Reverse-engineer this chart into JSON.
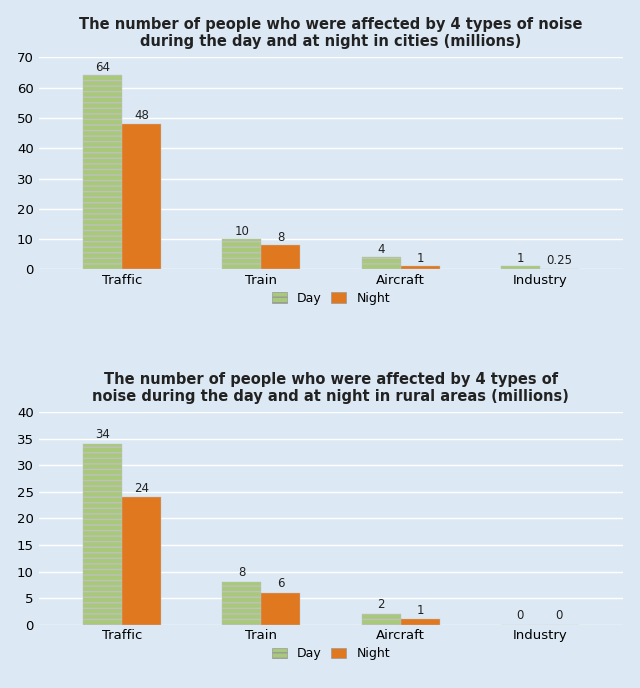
{
  "cities": {
    "title": "The number of people who were affected by 4 types of noise\nduring the day and at night in cities (millions)",
    "categories": [
      "Traffic",
      "Train",
      "Aircraft",
      "Industry"
    ],
    "day_values": [
      64,
      10,
      4,
      1
    ],
    "night_values": [
      48,
      8,
      1,
      0.25
    ],
    "ylim": [
      0,
      70
    ],
    "yticks": [
      0,
      10,
      20,
      30,
      40,
      50,
      60,
      70
    ]
  },
  "rural": {
    "title": "The number of people who were affected by 4 types of\nnoise during the day and at night in rural areas (millions)",
    "categories": [
      "Traffic",
      "Train",
      "Aircraft",
      "Industry"
    ],
    "day_values": [
      34,
      8,
      2,
      0
    ],
    "night_values": [
      24,
      6,
      1,
      0
    ],
    "ylim": [
      0,
      40
    ],
    "yticks": [
      0,
      5,
      10,
      15,
      20,
      25,
      30,
      35,
      40
    ]
  },
  "day_color": "#a8c97a",
  "night_color": "#e07820",
  "background_color": "#dce9f5",
  "bar_width": 0.28,
  "label_fontsize": 8.5,
  "title_fontsize": 10.5,
  "tick_fontsize": 9.5,
  "legend_fontsize": 9
}
